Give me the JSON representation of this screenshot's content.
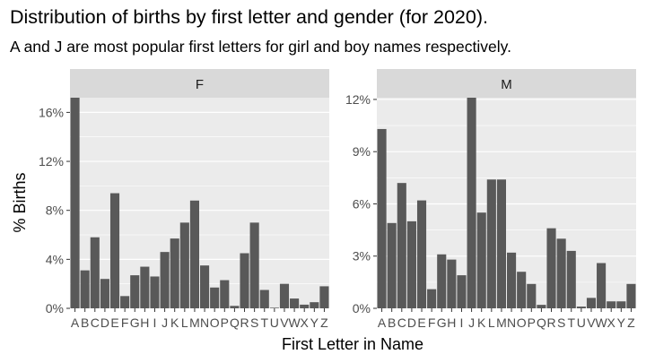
{
  "title": "Distribution of births by first letter and gender (for 2020).",
  "subtitle": "A and J are most popular first letters for girl and boy names respectively.",
  "chart_data": {
    "type": "bar",
    "title": "Distribution of births by first letter and gender (for 2020).",
    "subtitle": "A and J are most popular first letters for girl and boy names respectively.",
    "xlabel": "First Letter in Name",
    "ylabel": "% Births",
    "categories": [
      "A",
      "B",
      "C",
      "D",
      "E",
      "F",
      "G",
      "H",
      "I",
      "J",
      "K",
      "L",
      "M",
      "N",
      "O",
      "P",
      "Q",
      "R",
      "S",
      "T",
      "U",
      "V",
      "W",
      "X",
      "Y",
      "Z"
    ],
    "facets": [
      {
        "label": "F",
        "ylim": [
          0,
          17.2
        ],
        "yticks": [
          0,
          4,
          8,
          12,
          16
        ],
        "ytick_labels": [
          "0%",
          "4%",
          "8%",
          "12%",
          "16%"
        ],
        "values": [
          17.2,
          3.1,
          5.8,
          2.4,
          9.4,
          1.0,
          2.7,
          3.4,
          2.6,
          4.6,
          5.7,
          7.0,
          8.8,
          3.5,
          1.7,
          2.3,
          0.2,
          4.5,
          7.0,
          1.5,
          0.05,
          2.0,
          0.8,
          0.3,
          0.5,
          1.8
        ]
      },
      {
        "label": "M",
        "ylim": [
          0,
          12.1
        ],
        "yticks": [
          0,
          3,
          6,
          9,
          12
        ],
        "ytick_labels": [
          "0%",
          "3%",
          "6%",
          "9%",
          "12%"
        ],
        "values": [
          10.3,
          4.9,
          7.2,
          5.0,
          6.2,
          1.1,
          3.1,
          2.8,
          1.9,
          12.1,
          5.5,
          7.4,
          7.4,
          3.2,
          2.1,
          1.4,
          0.2,
          4.6,
          4.0,
          3.3,
          0.1,
          0.6,
          2.6,
          0.4,
          0.4,
          1.4
        ]
      }
    ],
    "bar_color": "#595959",
    "panel_background": "#ebebeb",
    "strip_background": "#d9d9d9",
    "grid": true
  }
}
